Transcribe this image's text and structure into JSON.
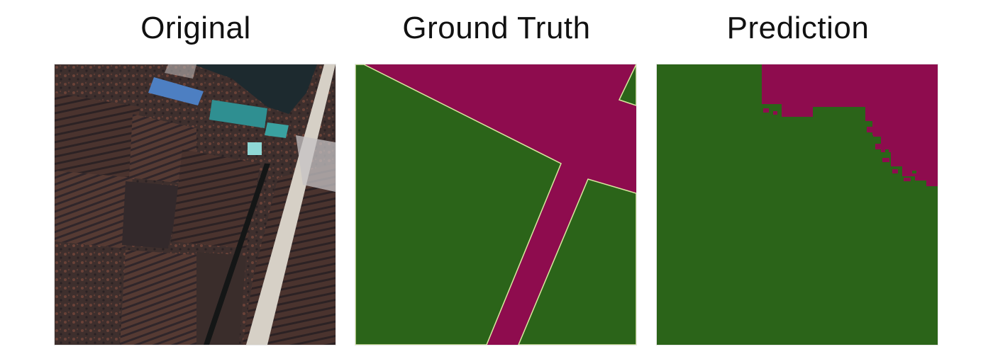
{
  "panels": [
    {
      "title": "Original"
    },
    {
      "title": "Ground Truth"
    },
    {
      "title": "Prediction"
    }
  ],
  "legend_colors": {
    "class_vegetation": "#2b6419",
    "class_road_building": "#8e0c4e",
    "boundary": "#d8e8a0"
  },
  "satellite_palette": {
    "soil_dark": "#3a2c28",
    "soil_red": "#5a3a32",
    "field_dark": "#2e2a2c",
    "road": "#d8d2c8",
    "water": "#1e2a30",
    "roof_blue": "#4a7cc0",
    "roof_teal": "#2f8e90"
  }
}
